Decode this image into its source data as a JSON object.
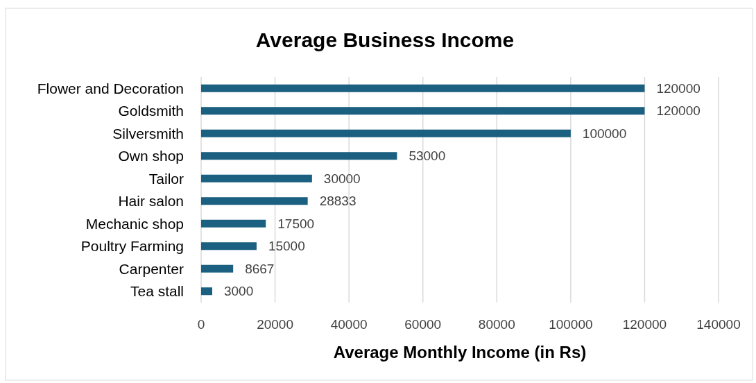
{
  "chart_data": {
    "type": "bar",
    "orientation": "horizontal",
    "title": "Average Business Income",
    "xlabel": "Average Monthly Income (in Rs)",
    "categories": [
      "Flower and Decoration",
      "Goldsmith",
      "Silversmith",
      "Own shop",
      "Tailor",
      "Hair salon",
      "Mechanic shop",
      "Poultry Farming",
      "Carpenter ",
      "Tea stall"
    ],
    "values": [
      120000,
      120000,
      100000,
      53000,
      30000,
      28833,
      17500,
      15000,
      8667,
      3000
    ],
    "color": "#1b6080",
    "xlim": [
      0,
      140000
    ],
    "xticks": [
      0,
      20000,
      40000,
      60000,
      80000,
      100000,
      120000,
      140000
    ],
    "grid": "x",
    "data_labels": true
  }
}
